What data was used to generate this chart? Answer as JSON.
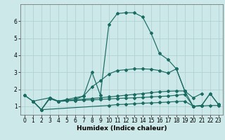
{
  "xlabel": "Humidex (Indice chaleur)",
  "bg_color": "#cce8e8",
  "line_color": "#1a6b62",
  "grid_color": "#aacfcf",
  "xlim": [
    -0.5,
    23.5
  ],
  "ylim": [
    0.5,
    7.0
  ],
  "yticks": [
    1,
    2,
    3,
    4,
    5,
    6
  ],
  "xticks": [
    0,
    1,
    2,
    3,
    4,
    5,
    6,
    7,
    8,
    9,
    10,
    11,
    12,
    13,
    14,
    15,
    16,
    17,
    18,
    19,
    20,
    21,
    22,
    23
  ],
  "series": [
    {
      "x": [
        0,
        1,
        2,
        3,
        4,
        5,
        6,
        7,
        8,
        9,
        10,
        11,
        12,
        13,
        14,
        15,
        16,
        17,
        18,
        19,
        20,
        21
      ],
      "y": [
        1.65,
        1.3,
        0.8,
        1.5,
        1.3,
        1.35,
        1.4,
        1.6,
        3.0,
        1.65,
        5.8,
        6.45,
        6.5,
        6.5,
        6.25,
        5.3,
        4.1,
        3.75,
        3.2,
        1.9,
        1.5,
        1.75
      ]
    },
    {
      "x": [
        0,
        1,
        3,
        4,
        5,
        6,
        7,
        8,
        9,
        10,
        11,
        12,
        13,
        14,
        15,
        16,
        17,
        18,
        19
      ],
      "y": [
        1.65,
        1.3,
        1.5,
        1.3,
        1.4,
        1.5,
        1.6,
        2.15,
        2.5,
        2.9,
        3.1,
        3.15,
        3.2,
        3.2,
        3.18,
        3.1,
        2.95,
        3.2,
        1.9
      ]
    },
    {
      "x": [
        1,
        2,
        3,
        4,
        5,
        6,
        7,
        8,
        9,
        10,
        11,
        12,
        13,
        14,
        15,
        16,
        17,
        18,
        19,
        20,
        21,
        22,
        23
      ],
      "y": [
        1.3,
        0.8,
        1.5,
        1.3,
        1.35,
        1.38,
        1.42,
        1.46,
        1.5,
        1.55,
        1.6,
        1.65,
        1.7,
        1.75,
        1.8,
        1.85,
        1.88,
        1.9,
        1.9,
        1.0,
        1.05,
        1.75,
        1.1
      ]
    },
    {
      "x": [
        1,
        2,
        3,
        4,
        5,
        6,
        7,
        8,
        9,
        10,
        11,
        12,
        13,
        14,
        15,
        16,
        17,
        18,
        19,
        20,
        21,
        22,
        23
      ],
      "y": [
        1.3,
        0.8,
        1.45,
        1.28,
        1.32,
        1.34,
        1.36,
        1.38,
        1.4,
        1.43,
        1.46,
        1.48,
        1.5,
        1.52,
        1.55,
        1.58,
        1.6,
        1.65,
        1.7,
        1.0,
        1.05,
        1.75,
        1.1
      ]
    },
    {
      "x": [
        2,
        10,
        11,
        12,
        13,
        14,
        15,
        16,
        17,
        18,
        19,
        20,
        21,
        22,
        23
      ],
      "y": [
        0.8,
        1.05,
        1.1,
        1.12,
        1.15,
        1.18,
        1.2,
        1.22,
        1.25,
        1.28,
        1.3,
        1.0,
        1.02,
        1.05,
        1.05
      ]
    }
  ]
}
